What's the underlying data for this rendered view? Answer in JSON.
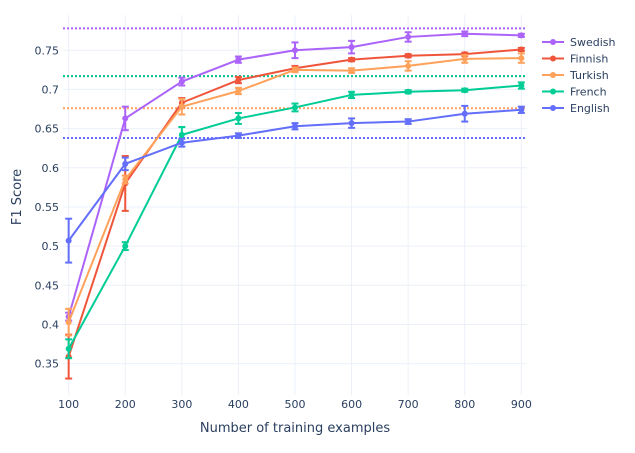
{
  "chart_data": {
    "type": "line",
    "xlabel": "Number of training examples",
    "ylabel": "F1 Score",
    "x": [
      100,
      200,
      300,
      400,
      500,
      600,
      700,
      800,
      900
    ],
    "xlim": [
      90,
      910
    ],
    "ylim": [
      0.31,
      0.795
    ],
    "xticks": [
      "100",
      "200",
      "300",
      "400",
      "500",
      "600",
      "700",
      "800",
      "900"
    ],
    "yticks": [
      {
        "value": 0.35,
        "label": "0.35"
      },
      {
        "value": 0.4,
        "label": "0.4"
      },
      {
        "value": 0.45,
        "label": "0.45"
      },
      {
        "value": 0.5,
        "label": "0.5"
      },
      {
        "value": 0.55,
        "label": "0.55"
      },
      {
        "value": 0.6,
        "label": "0.6"
      },
      {
        "value": 0.65,
        "label": "0.65"
      },
      {
        "value": 0.7,
        "label": "0.7"
      },
      {
        "value": 0.75,
        "label": "0.75"
      }
    ],
    "grid": true,
    "legend_position": "top-right",
    "series": [
      {
        "name": "Swedish",
        "color": "#ab63fa",
        "values": [
          0.41,
          0.663,
          0.71,
          0.738,
          0.75,
          0.754,
          0.767,
          0.771,
          0.769
        ],
        "errors": [
          0.005,
          0.015,
          0.005,
          0.004,
          0.01,
          0.008,
          0.006,
          0.003,
          0.002
        ],
        "reference": 0.778
      },
      {
        "name": "Finnish",
        "color": "#ef553b",
        "values": [
          0.359,
          0.58,
          0.683,
          0.712,
          0.727,
          0.738,
          0.743,
          0.745,
          0.751
        ],
        "errors": [
          0.028,
          0.035,
          0.006,
          0.004,
          0.003,
          0.002,
          0.002,
          0.002,
          0.002
        ],
        "reference": 0.717
      },
      {
        "name": "Turkish",
        "color": "#ffa15a",
        "values": [
          0.403,
          0.585,
          0.678,
          0.698,
          0.725,
          0.724,
          0.73,
          0.739,
          0.74
        ],
        "errors": [
          0.017,
          0.005,
          0.01,
          0.004,
          0.003,
          0.003,
          0.006,
          0.005,
          0.006
        ],
        "reference": 0.676
      },
      {
        "name": "French",
        "color": "#00cc96",
        "values": [
          0.369,
          0.5,
          0.642,
          0.663,
          0.677,
          0.693,
          0.697,
          0.699,
          0.705
        ],
        "errors": [
          0.012,
          0.005,
          0.01,
          0.007,
          0.005,
          0.004,
          0.002,
          0.002,
          0.004
        ],
        "reference": 0.717
      },
      {
        "name": "English",
        "color": "#636efa",
        "values": [
          0.507,
          0.605,
          0.632,
          0.641,
          0.653,
          0.657,
          0.659,
          0.669,
          0.674
        ],
        "errors": [
          0.028,
          0.008,
          0.005,
          0.003,
          0.004,
          0.006,
          0.003,
          0.01,
          0.004
        ],
        "reference": 0.638
      }
    ]
  }
}
